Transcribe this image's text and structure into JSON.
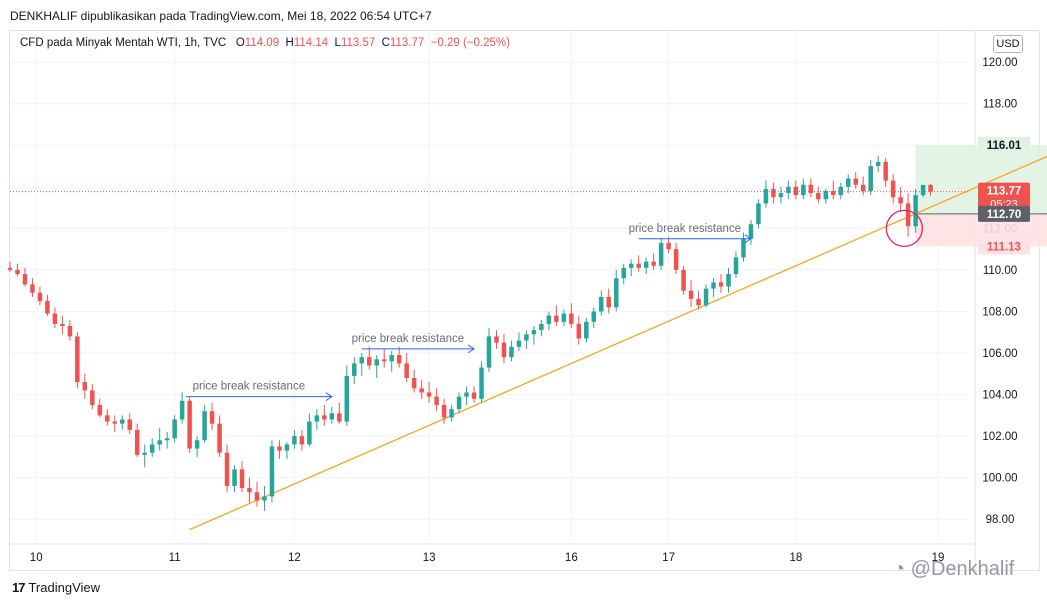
{
  "header": {
    "published_by": "DENKHALIF dipublikasikan pada TradingView.com, Mei 18, 2022 06:54 UTC+7"
  },
  "symbol": {
    "name": "CFD pada Minyak Mentah WTI, 1h, TVC",
    "open_label": "O",
    "open": "114.09",
    "high_label": "H",
    "high": "114.14",
    "low_label": "L",
    "low": "113.57",
    "close_label": "C",
    "close": "113.77",
    "change": "−0.29 (−0.25%)"
  },
  "currency_button": "USD",
  "footer": {
    "logo_mark": "17",
    "logo_text": "TradingView"
  },
  "watermark": "@Denkhalif",
  "colors": {
    "up": "#26a69a",
    "down": "#ef5350",
    "trendline": "#f5a623",
    "arrow": "#2962ff",
    "profit_zone": "#e0f2e1",
    "loss_zone": "#fde2e3",
    "circle": "#e91e63"
  },
  "chart_data": {
    "type": "candlestick",
    "y_ticks": [
      "120.00",
      "118.00",
      "116.00",
      "114.00",
      "112.00",
      "110.00",
      "108.00",
      "106.00",
      "104.00",
      "102.00",
      "100.00",
      "98.00"
    ],
    "ylim": [
      97.0,
      121.5
    ],
    "x_ticks": [
      "10",
      "11",
      "12",
      "13",
      "16",
      "17",
      "18",
      "19"
    ],
    "grid": true,
    "price_labels": [
      {
        "name": "take-profit",
        "value": "116.01",
        "color": "#26a69a",
        "text_color": "#131722",
        "bg": "#e0f2e1"
      },
      {
        "name": "last-price",
        "value": "113.77",
        "sub": "05:23",
        "color": "#ef5350",
        "text_color": "#ffffff",
        "bg": "#ef5350"
      },
      {
        "name": "entry",
        "value": "112.70",
        "color": "#131722",
        "text_color": "#ffffff",
        "bg": "#5d606b"
      },
      {
        "name": "stop-loss",
        "value": "111.13",
        "color": "#ef5350",
        "text_color": "#ef5350",
        "bg": "#fde2e3"
      }
    ],
    "annotations": [
      {
        "text": "price break resistance",
        "price": 103.9,
        "t_start": 23.5,
        "t_end": 43
      },
      {
        "text": "price break resistance",
        "price": 106.2,
        "t_start": 47,
        "t_end": 62
      },
      {
        "text": "price break resistance",
        "price": 111.5,
        "t_start": 84,
        "t_end": 99
      }
    ],
    "trendline": {
      "from": [
        24,
        97.5
      ],
      "to": [
        142,
        116.0
      ]
    },
    "position": {
      "t_start": 121,
      "t_end": 139,
      "entry": 112.7,
      "take_profit": 116.01,
      "stop_loss": 111.13
    },
    "highlight_circle": {
      "t": 119.5,
      "price": 112.0
    },
    "candles": [
      [
        0,
        110.1,
        110.4,
        109.9,
        110.0
      ],
      [
        1,
        110.0,
        110.3,
        109.7,
        109.8
      ],
      [
        2,
        109.8,
        110.1,
        109.2,
        109.3
      ],
      [
        3,
        109.3,
        109.6,
        108.7,
        108.9
      ],
      [
        4,
        108.9,
        109.2,
        108.3,
        108.5
      ],
      [
        5,
        108.5,
        108.8,
        107.8,
        107.9
      ],
      [
        6,
        107.9,
        108.2,
        107.2,
        107.4
      ],
      [
        7,
        107.4,
        107.8,
        106.9,
        107.3
      ],
      [
        8,
        107.3,
        107.6,
        106.6,
        106.8
      ],
      [
        9,
        106.8,
        107.0,
        104.3,
        104.6
      ],
      [
        10,
        104.6,
        105.0,
        103.8,
        104.2
      ],
      [
        11,
        104.2,
        104.5,
        103.3,
        103.5
      ],
      [
        12,
        103.5,
        103.8,
        102.9,
        103.0
      ],
      [
        13,
        103.0,
        103.3,
        102.5,
        102.7
      ],
      [
        14,
        102.7,
        103.0,
        102.2,
        102.6
      ],
      [
        15,
        102.6,
        103.0,
        102.3,
        102.8
      ],
      [
        16,
        102.8,
        103.1,
        102.1,
        102.3
      ],
      [
        17,
        102.3,
        102.6,
        101.0,
        101.1
      ],
      [
        18,
        101.1,
        101.6,
        100.5,
        101.2
      ],
      [
        19,
        101.2,
        101.9,
        101.0,
        101.6
      ],
      [
        20,
        101.6,
        102.4,
        101.3,
        101.8
      ],
      [
        21,
        101.8,
        102.2,
        101.4,
        101.9
      ],
      [
        22,
        101.9,
        103.0,
        101.7,
        102.8
      ],
      [
        23,
        102.8,
        104.1,
        102.6,
        103.7
      ],
      [
        24,
        103.7,
        103.9,
        101.2,
        101.4
      ],
      [
        25,
        101.4,
        102.0,
        101.0,
        101.8
      ],
      [
        26,
        101.8,
        103.5,
        101.7,
        103.2
      ],
      [
        27,
        103.2,
        103.6,
        102.3,
        102.6
      ],
      [
        28,
        102.6,
        103.0,
        101.0,
        101.2
      ],
      [
        29,
        101.2,
        101.6,
        99.3,
        99.6
      ],
      [
        30,
        99.6,
        100.6,
        99.3,
        100.4
      ],
      [
        31,
        100.4,
        100.8,
        99.3,
        99.5
      ],
      [
        32,
        99.5,
        100.0,
        98.8,
        99.3
      ],
      [
        33,
        99.3,
        99.8,
        98.6,
        98.9
      ],
      [
        34,
        98.9,
        99.6,
        98.4,
        99.1
      ],
      [
        35,
        99.1,
        101.8,
        98.8,
        101.5
      ],
      [
        36,
        101.5,
        101.8,
        100.9,
        101.3
      ],
      [
        37,
        101.3,
        101.7,
        100.9,
        101.6
      ],
      [
        38,
        101.6,
        102.3,
        101.4,
        102.0
      ],
      [
        39,
        102.0,
        102.3,
        101.3,
        101.6
      ],
      [
        40,
        101.6,
        103.1,
        101.5,
        102.7
      ],
      [
        41,
        102.7,
        103.3,
        102.3,
        103.0
      ],
      [
        42,
        103.0,
        103.5,
        102.5,
        102.8
      ],
      [
        43,
        102.8,
        103.4,
        102.6,
        103.1
      ],
      [
        44,
        103.1,
        103.6,
        102.6,
        102.7
      ],
      [
        45,
        102.7,
        105.4,
        102.5,
        104.9
      ],
      [
        46,
        104.9,
        105.8,
        104.5,
        105.5
      ],
      [
        47,
        105.5,
        106.0,
        104.9,
        105.8
      ],
      [
        48,
        105.8,
        106.3,
        105.2,
        105.4
      ],
      [
        49,
        105.4,
        105.9,
        104.8,
        105.7
      ],
      [
        50,
        105.7,
        106.2,
        105.3,
        105.6
      ],
      [
        51,
        105.6,
        106.1,
        105.1,
        105.9
      ],
      [
        52,
        105.9,
        106.3,
        105.3,
        105.5
      ],
      [
        53,
        105.5,
        106.0,
        104.6,
        104.8
      ],
      [
        54,
        104.8,
        105.2,
        104.1,
        104.3
      ],
      [
        55,
        104.3,
        104.7,
        103.8,
        104.1
      ],
      [
        56,
        104.1,
        104.6,
        103.6,
        103.9
      ],
      [
        57,
        103.9,
        104.3,
        103.2,
        103.5
      ],
      [
        58,
        103.5,
        103.8,
        102.6,
        102.9
      ],
      [
        59,
        102.9,
        103.5,
        102.7,
        103.3
      ],
      [
        60,
        103.3,
        104.1,
        103.1,
        103.9
      ],
      [
        61,
        103.9,
        104.4,
        103.5,
        104.1
      ],
      [
        62,
        104.1,
        104.4,
        103.6,
        103.8
      ],
      [
        63,
        103.8,
        105.6,
        103.6,
        105.3
      ],
      [
        64,
        105.3,
        107.2,
        105.1,
        106.8
      ],
      [
        65,
        106.8,
        107.1,
        106.2,
        106.5
      ],
      [
        66,
        106.5,
        106.9,
        105.5,
        105.8
      ],
      [
        67,
        105.8,
        106.6,
        105.6,
        106.3
      ],
      [
        68,
        106.3,
        107.0,
        106.1,
        106.6
      ],
      [
        69,
        106.6,
        107.1,
        106.2,
        106.9
      ],
      [
        70,
        106.9,
        107.3,
        106.4,
        107.1
      ],
      [
        71,
        107.1,
        107.6,
        106.8,
        107.4
      ],
      [
        72,
        107.4,
        108.0,
        107.1,
        107.8
      ],
      [
        73,
        107.8,
        108.3,
        107.3,
        107.5
      ],
      [
        74,
        107.5,
        108.1,
        107.3,
        107.9
      ],
      [
        75,
        107.9,
        108.4,
        107.2,
        107.4
      ],
      [
        76,
        107.4,
        107.8,
        106.4,
        106.7
      ],
      [
        77,
        106.7,
        107.7,
        106.5,
        107.5
      ],
      [
        78,
        107.5,
        108.2,
        107.2,
        108.0
      ],
      [
        79,
        108.0,
        109.0,
        107.8,
        108.7
      ],
      [
        80,
        108.7,
        109.1,
        107.9,
        108.2
      ],
      [
        81,
        108.2,
        110.0,
        108.0,
        109.6
      ],
      [
        82,
        109.6,
        110.3,
        109.3,
        110.1
      ],
      [
        83,
        110.1,
        110.5,
        109.7,
        110.3
      ],
      [
        84,
        110.3,
        110.7,
        109.9,
        110.1
      ],
      [
        85,
        110.1,
        110.6,
        109.8,
        110.4
      ],
      [
        86,
        110.4,
        110.8,
        110.0,
        110.2
      ],
      [
        87,
        110.2,
        111.5,
        110.0,
        111.3
      ],
      [
        88,
        111.3,
        111.6,
        110.8,
        111.0
      ],
      [
        89,
        111.0,
        111.3,
        109.8,
        110.0
      ],
      [
        90,
        110.0,
        110.2,
        108.8,
        109.0
      ],
      [
        91,
        109.0,
        109.5,
        108.2,
        108.6
      ],
      [
        92,
        108.6,
        109.0,
        108.1,
        108.3
      ],
      [
        93,
        108.3,
        109.3,
        108.2,
        109.1
      ],
      [
        94,
        109.1,
        109.6,
        108.7,
        109.4
      ],
      [
        95,
        109.4,
        109.8,
        108.9,
        109.2
      ],
      [
        96,
        109.2,
        110.1,
        108.9,
        109.8
      ],
      [
        97,
        109.8,
        110.9,
        109.6,
        110.6
      ],
      [
        98,
        110.6,
        111.8,
        110.4,
        111.5
      ],
      [
        99,
        111.5,
        112.4,
        111.2,
        112.2
      ],
      [
        100,
        112.2,
        113.4,
        112.0,
        113.2
      ],
      [
        101,
        113.2,
        114.3,
        113.0,
        113.9
      ],
      [
        102,
        113.9,
        114.2,
        113.2,
        113.5
      ],
      [
        103,
        113.5,
        114.0,
        113.2,
        113.7
      ],
      [
        104,
        113.7,
        114.3,
        113.4,
        114.0
      ],
      [
        105,
        114.0,
        114.3,
        113.4,
        113.6
      ],
      [
        106,
        113.6,
        114.4,
        113.4,
        114.1
      ],
      [
        107,
        114.1,
        114.4,
        113.5,
        113.7
      ],
      [
        108,
        113.7,
        114.0,
        113.2,
        113.4
      ],
      [
        109,
        113.4,
        113.9,
        113.2,
        113.8
      ],
      [
        110,
        113.8,
        114.3,
        113.4,
        113.6
      ],
      [
        111,
        113.6,
        114.2,
        113.4,
        114.0
      ],
      [
        112,
        114.0,
        114.6,
        113.7,
        114.4
      ],
      [
        113,
        114.4,
        114.7,
        113.9,
        114.1
      ],
      [
        114,
        114.1,
        114.5,
        113.6,
        113.8
      ],
      [
        115,
        113.8,
        115.3,
        113.6,
        115.0
      ],
      [
        116,
        115.0,
        115.5,
        114.7,
        115.2
      ],
      [
        117,
        115.2,
        115.4,
        114.0,
        114.3
      ],
      [
        118,
        114.3,
        114.6,
        113.2,
        113.5
      ],
      [
        119,
        113.5,
        114.0,
        112.8,
        113.2
      ],
      [
        120,
        113.2,
        113.7,
        111.6,
        112.1
      ],
      [
        121,
        112.1,
        113.9,
        111.8,
        113.6
      ],
      [
        122,
        113.6,
        114.1,
        113.5,
        114.09
      ],
      [
        123,
        114.09,
        114.14,
        113.57,
        113.77
      ]
    ],
    "t_ticks": [
      3.5,
      22,
      38,
      56,
      75,
      88,
      105,
      124
    ],
    "t_max": 128
  }
}
